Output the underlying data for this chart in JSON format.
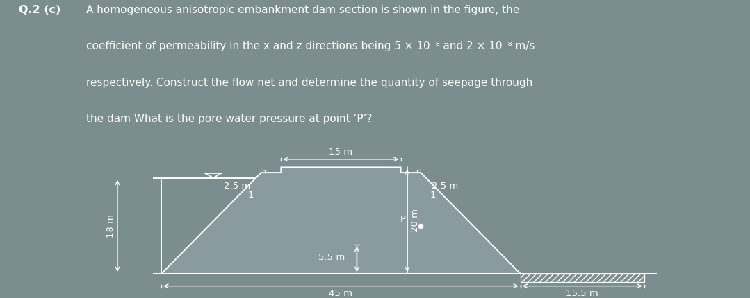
{
  "bg_color": "#7b8d8e",
  "dam_color": "#ffffff",
  "text_color": "#ffffff",
  "title_text": "Q.2 (c)",
  "question_lines": [
    "A homogeneous anisotropic embankment dam section is shown in the figure, the",
    "coefficient of permeability in the x and z directions being 5 × 10⁻⁸ and 2 × 10⁻⁸ m/s",
    "respectively. Construct the flow net and determine the quantity of seepage through",
    "the dam What is the pore water pressure at point ‘P’?"
  ],
  "title_fontsize": 11.5,
  "body_fontsize": 11.0,
  "diagram_fontsize": 9.5,
  "bg_panel_color": "#7b8d8e"
}
